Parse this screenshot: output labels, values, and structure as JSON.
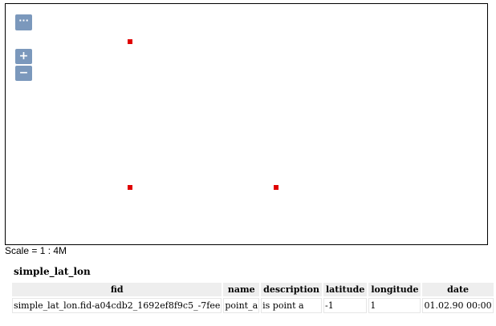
{
  "map": {
    "controls": {
      "more_label": "···",
      "zoom_in_label": "+",
      "zoom_out_label": "−"
    },
    "features": [
      {
        "name": "feature-point"
      },
      {
        "name": "feature-point"
      },
      {
        "name": "feature-point"
      }
    ],
    "feature_color": "#e00000",
    "control_color": "#7b98bc"
  },
  "scale": {
    "text": "Scale = 1 : 4M"
  },
  "layer": {
    "title": "simple_lat_lon",
    "columns": [
      "fid",
      "name",
      "description",
      "latitude",
      "longitude",
      "date"
    ],
    "rows": [
      [
        "simple_lat_lon.fid-a04cdb2_1692ef8f9c5_-7fee",
        "point_a",
        "is point a",
        "-1",
        "1",
        "01.02.90 00:00"
      ]
    ]
  }
}
